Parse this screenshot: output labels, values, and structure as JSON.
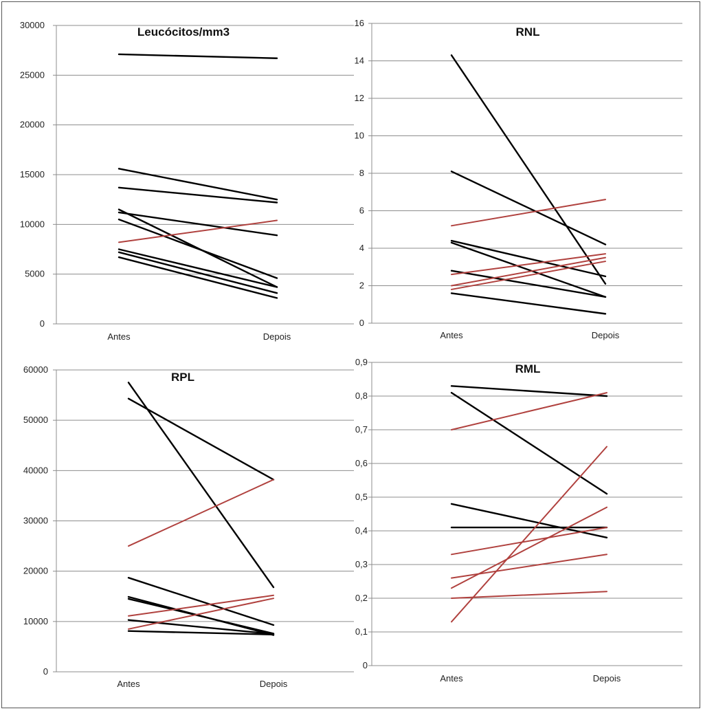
{
  "chart_data": [
    {
      "type": "line",
      "title": "Leucócitos/mm3",
      "categories": [
        "Antes",
        "Depois"
      ],
      "ylim": [
        0,
        30000
      ],
      "ytick_labels": [
        "0",
        "5000",
        "10000",
        "15000",
        "20000",
        "25000",
        "30000"
      ],
      "grid": true,
      "series": [
        {
          "values": [
            27100,
            26700
          ],
          "color": "#000000"
        },
        {
          "values": [
            15600,
            12500
          ],
          "color": "#000000"
        },
        {
          "values": [
            13700,
            12200
          ],
          "color": "#000000"
        },
        {
          "values": [
            11500,
            3700
          ],
          "color": "#000000"
        },
        {
          "values": [
            11200,
            8900
          ],
          "color": "#000000"
        },
        {
          "values": [
            10500,
            4600
          ],
          "color": "#000000"
        },
        {
          "values": [
            8200,
            10400
          ],
          "color": "#b0413e"
        },
        {
          "values": [
            7500,
            3700
          ],
          "color": "#000000"
        },
        {
          "values": [
            7200,
            3100
          ],
          "color": "#000000"
        },
        {
          "values": [
            6700,
            2600
          ],
          "color": "#000000"
        }
      ]
    },
    {
      "type": "line",
      "title": "RNL",
      "categories": [
        "Antes",
        "Depois"
      ],
      "ylim": [
        0,
        16
      ],
      "ytick_labels": [
        "0",
        "2",
        "4",
        "6",
        "8",
        "10",
        "12",
        "14",
        "16"
      ],
      "grid": true,
      "series": [
        {
          "values": [
            14.3,
            2.1
          ],
          "color": "#000000"
        },
        {
          "values": [
            8.1,
            4.2
          ],
          "color": "#000000"
        },
        {
          "values": [
            5.2,
            6.6
          ],
          "color": "#b0413e"
        },
        {
          "values": [
            4.4,
            2.5
          ],
          "color": "#000000"
        },
        {
          "values": [
            4.3,
            1.4
          ],
          "color": "#000000"
        },
        {
          "values": [
            2.8,
            1.4
          ],
          "color": "#000000"
        },
        {
          "values": [
            2.6,
            3.7
          ],
          "color": "#b0413e"
        },
        {
          "values": [
            2.0,
            3.5
          ],
          "color": "#b0413e"
        },
        {
          "values": [
            1.8,
            3.3
          ],
          "color": "#b0413e"
        },
        {
          "values": [
            1.6,
            0.5
          ],
          "color": "#000000"
        }
      ]
    },
    {
      "type": "line",
      "title": "RPL",
      "categories": [
        "Antes",
        "Depois"
      ],
      "ylim": [
        0,
        60000
      ],
      "ytick_labels": [
        "0",
        "10000",
        "20000",
        "30000",
        "40000",
        "50000",
        "60000"
      ],
      "grid": true,
      "series": [
        {
          "values": [
            57500,
            16800
          ],
          "color": "#000000"
        },
        {
          "values": [
            54300,
            38200
          ],
          "color": "#000000"
        },
        {
          "values": [
            25000,
            38200
          ],
          "color": "#b0413e"
        },
        {
          "values": [
            18700,
            9300
          ],
          "color": "#000000"
        },
        {
          "values": [
            14900,
            7300
          ],
          "color": "#000000"
        },
        {
          "values": [
            14500,
            7600
          ],
          "color": "#000000"
        },
        {
          "values": [
            11100,
            15200
          ],
          "color": "#b0413e"
        },
        {
          "values": [
            10300,
            7500
          ],
          "color": "#000000"
        },
        {
          "values": [
            8500,
            14600
          ],
          "color": "#b0413e"
        },
        {
          "values": [
            8100,
            7400
          ],
          "color": "#000000"
        }
      ]
    },
    {
      "type": "line",
      "title": "RML",
      "categories": [
        "Antes",
        "Depois"
      ],
      "ylim": [
        0,
        0.9
      ],
      "ytick_labels": [
        "0",
        "0,1",
        "0,2",
        "0,3",
        "0,4",
        "0,5",
        "0,6",
        "0,7",
        "0,8",
        "0,9"
      ],
      "grid": true,
      "series": [
        {
          "values": [
            0.83,
            0.8
          ],
          "color": "#000000"
        },
        {
          "values": [
            0.81,
            0.51
          ],
          "color": "#000000"
        },
        {
          "values": [
            0.7,
            0.81
          ],
          "color": "#b0413e"
        },
        {
          "values": [
            0.48,
            0.38
          ],
          "color": "#000000"
        },
        {
          "values": [
            0.41,
            0.41
          ],
          "color": "#000000"
        },
        {
          "values": [
            0.33,
            0.41
          ],
          "color": "#b0413e"
        },
        {
          "values": [
            0.26,
            0.33
          ],
          "color": "#b0413e"
        },
        {
          "values": [
            0.23,
            0.47
          ],
          "color": "#b0413e"
        },
        {
          "values": [
            0.2,
            0.22
          ],
          "color": "#b0413e"
        },
        {
          "values": [
            0.13,
            0.65
          ],
          "color": "#b0413e"
        }
      ]
    }
  ]
}
